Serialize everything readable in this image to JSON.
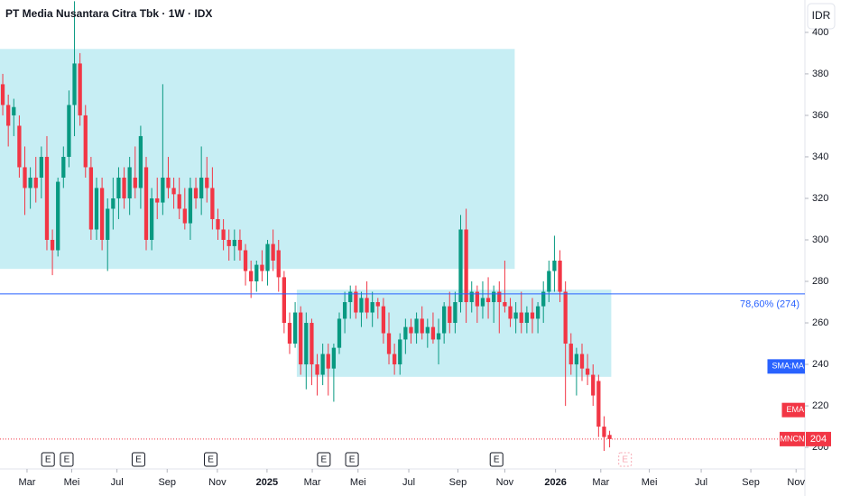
{
  "chart_data": {
    "type": "candlestick",
    "title": "PT Media Nusantara Citra Tbk · 1W · IDX",
    "currency_button": "IDR",
    "up_color": "#089981",
    "down_color": "#f23645",
    "x": [
      0,
      1,
      2,
      3,
      4,
      5,
      6,
      7,
      8,
      9,
      10,
      11,
      12,
      13,
      14,
      15,
      16,
      17,
      18,
      19,
      20,
      21,
      22,
      23,
      24,
      25,
      26,
      27,
      28,
      29,
      30,
      31,
      32,
      33,
      34,
      35,
      36,
      37,
      38,
      39,
      40,
      41,
      42,
      43,
      44,
      45,
      46,
      47,
      48,
      49,
      50,
      51,
      52,
      53,
      54,
      55,
      56,
      57,
      58,
      59,
      60,
      61,
      62,
      63,
      64,
      65,
      66,
      67,
      68,
      69,
      70,
      71,
      72,
      73,
      74,
      75,
      76,
      77,
      78,
      79,
      80,
      81,
      82,
      83,
      84,
      85,
      86,
      87,
      88,
      89,
      90,
      91,
      92,
      93,
      94,
      95,
      96,
      97,
      98,
      99,
      100,
      101,
      102,
      103,
      104,
      105,
      106,
      107,
      108,
      109,
      110
    ],
    "open": [
      375,
      365,
      360,
      355,
      335,
      325,
      330,
      330,
      340,
      300,
      295,
      330,
      340,
      365,
      385,
      360,
      335,
      305,
      325,
      300,
      315,
      320,
      330,
      320,
      330,
      325,
      335,
      300,
      320,
      318,
      330,
      325,
      322,
      315,
      308,
      325,
      320,
      330,
      325,
      310,
      305,
      300,
      297,
      300,
      295,
      285,
      280,
      288,
      285,
      298,
      295,
      282,
      260,
      250,
      265,
      240,
      260,
      240,
      235,
      245,
      238,
      248,
      262,
      270,
      275,
      265,
      272,
      265,
      270,
      268,
      255,
      245,
      240,
      252,
      258,
      255,
      262,
      255,
      258,
      252,
      255,
      268,
      260,
      270,
      305,
      270,
      275,
      268,
      272,
      270,
      275,
      270,
      268,
      262,
      265,
      260,
      265,
      262,
      268,
      275,
      285,
      290,
      275,
      250,
      240,
      245,
      238,
      235,
      232,
      210,
      206
    ],
    "high": [
      380,
      370,
      368,
      360,
      345,
      335,
      340,
      345,
      350,
      305,
      330,
      345,
      372,
      415,
      390,
      365,
      340,
      330,
      330,
      320,
      330,
      335,
      335,
      340,
      345,
      355,
      340,
      325,
      330,
      375,
      340,
      330,
      330,
      325,
      330,
      330,
      345,
      340,
      335,
      315,
      310,
      305,
      305,
      305,
      298,
      290,
      290,
      295,
      300,
      305,
      300,
      285,
      265,
      270,
      268,
      265,
      262,
      245,
      250,
      250,
      250,
      265,
      275,
      278,
      278,
      275,
      280,
      275,
      272,
      272,
      265,
      250,
      255,
      262,
      262,
      265,
      268,
      262,
      265,
      262,
      270,
      275,
      275,
      312,
      315,
      280,
      278,
      280,
      282,
      278,
      280,
      290,
      272,
      270,
      275,
      268,
      272,
      270,
      280,
      290,
      302,
      295,
      280,
      255,
      248,
      250,
      245,
      240,
      235,
      215,
      208
    ],
    "low": [
      360,
      345,
      350,
      330,
      312,
      315,
      318,
      320,
      295,
      283,
      292,
      325,
      335,
      350,
      355,
      330,
      300,
      300,
      295,
      285,
      305,
      310,
      315,
      312,
      320,
      315,
      295,
      295,
      310,
      312,
      320,
      315,
      310,
      305,
      300,
      315,
      312,
      318,
      305,
      300,
      295,
      290,
      290,
      290,
      278,
      272,
      275,
      280,
      278,
      285,
      275,
      255,
      245,
      248,
      235,
      228,
      230,
      225,
      230,
      225,
      222,
      245,
      255,
      262,
      262,
      258,
      262,
      258,
      262,
      250,
      240,
      235,
      235,
      245,
      250,
      250,
      252,
      248,
      250,
      240,
      250,
      255,
      255,
      265,
      260,
      265,
      260,
      262,
      262,
      260,
      255,
      265,
      258,
      255,
      255,
      255,
      255,
      255,
      260,
      270,
      275,
      270,
      220,
      235,
      225,
      232,
      230,
      220,
      205,
      198,
      200
    ],
    "close": [
      365,
      355,
      364,
      335,
      325,
      330,
      325,
      340,
      300,
      295,
      328,
      340,
      365,
      385,
      360,
      335,
      305,
      325,
      300,
      315,
      320,
      330,
      320,
      335,
      325,
      350,
      300,
      320,
      318,
      330,
      325,
      322,
      315,
      308,
      325,
      320,
      330,
      325,
      310,
      305,
      300,
      297,
      300,
      295,
      285,
      280,
      288,
      285,
      298,
      290,
      282,
      260,
      250,
      265,
      240,
      260,
      240,
      235,
      245,
      238,
      248,
      262,
      270,
      275,
      265,
      272,
      265,
      270,
      268,
      255,
      245,
      240,
      252,
      258,
      255,
      262,
      255,
      258,
      252,
      255,
      268,
      260,
      270,
      305,
      270,
      275,
      268,
      272,
      270,
      275,
      270,
      268,
      262,
      265,
      260,
      265,
      262,
      268,
      275,
      285,
      290,
      275,
      250,
      240,
      245,
      238,
      235,
      225,
      210,
      205,
      204
    ],
    "xlim": [
      -0.5,
      145.4
    ],
    "xticks": [
      {
        "value": 4.4,
        "label": "Mar"
      },
      {
        "value": 12.5,
        "label": "Mei"
      },
      {
        "value": 20.7,
        "label": "Jul"
      },
      {
        "value": 29.8,
        "label": "Sep"
      },
      {
        "value": 38.9,
        "label": "Nov"
      },
      {
        "value": 47.9,
        "label": "2025"
      },
      {
        "value": 56.1,
        "label": "Mar"
      },
      {
        "value": 64.4,
        "label": "Mei"
      },
      {
        "value": 73.6,
        "label": "Jul"
      },
      {
        "value": 82.5,
        "label": "Sep"
      },
      {
        "value": 91,
        "label": "Nov"
      },
      {
        "value": 100.2,
        "label": "2026"
      },
      {
        "value": 108.4,
        "label": "Mar"
      },
      {
        "value": 117.2,
        "label": "Mei"
      },
      {
        "value": 126.6,
        "label": "Jul"
      },
      {
        "value": 135.6,
        "label": "Sep"
      },
      {
        "value": 143.8,
        "label": "Nov"
      }
    ],
    "ylim": [
      198.3,
      415.6
    ],
    "yticks": [
      200,
      220,
      240,
      260,
      280,
      300,
      320,
      340,
      360,
      380,
      400
    ],
    "zones": [
      {
        "x": [
          -0.5,
          92.8
        ],
        "y": [
          286,
          392
        ]
      },
      {
        "x": [
          53.3,
          110.3
        ],
        "y": [
          234,
          276
        ]
      }
    ],
    "level": {
      "value": 274,
      "label": "78,60% (274)",
      "color": "#2962ff"
    },
    "indicator_labels": [
      {
        "label": "SMA:MA",
        "value": 239,
        "color": "#2962ff"
      },
      {
        "label": "EMA",
        "value": 218,
        "color": "#f23645"
      }
    ],
    "last_price": {
      "symbol": "MNCN",
      "value": 204,
      "color": "#f23645"
    },
    "events": [
      {
        "x": 8.2,
        "label": "E"
      },
      {
        "x": 11.6,
        "label": "E"
      },
      {
        "x": 24.6,
        "label": "E"
      },
      {
        "x": 37.7,
        "label": "E"
      },
      {
        "x": 58.2,
        "label": "E"
      },
      {
        "x": 63.3,
        "label": "E"
      },
      {
        "x": 89.5,
        "label": "E"
      },
      {
        "x": 112.8,
        "label": "E"
      }
    ]
  }
}
